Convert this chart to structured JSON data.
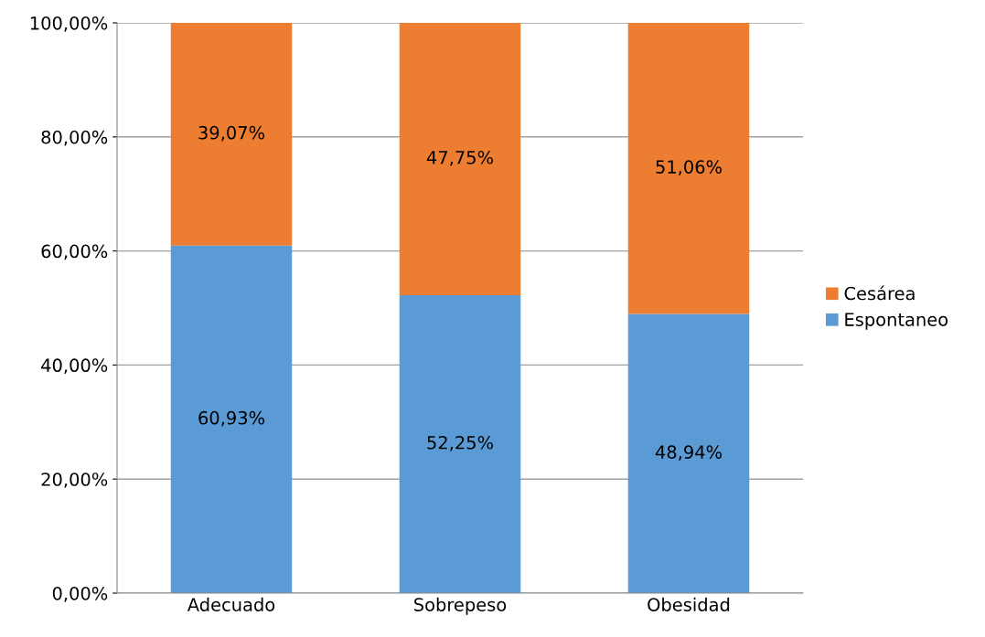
{
  "chart_data": {
    "type": "bar",
    "stacked": true,
    "categories": [
      "Adecuado",
      "Sobrepeso",
      "Obesidad"
    ],
    "series": [
      {
        "name": "Espontaneo",
        "color": "#5b9bd5",
        "values": [
          60.93,
          52.25,
          48.94
        ],
        "value_labels": [
          "60,93%",
          "52,25%",
          "48,94%"
        ]
      },
      {
        "name": "Cesárea",
        "color": "#ed7d31",
        "values": [
          39.07,
          47.75,
          51.06
        ],
        "value_labels": [
          "39,07%",
          "47,75%",
          "51,06%"
        ]
      }
    ],
    "ylim": [
      0,
      100
    ],
    "yticks": [
      {
        "value": 0,
        "label": "0,00%"
      },
      {
        "value": 20,
        "label": "20,00%"
      },
      {
        "value": 40,
        "label": "40,00%"
      },
      {
        "value": 60,
        "label": "60,00%"
      },
      {
        "value": 80,
        "label": "80,00%"
      },
      {
        "value": 100,
        "label": "100,00%"
      }
    ],
    "grid": "y",
    "legend": "right"
  }
}
